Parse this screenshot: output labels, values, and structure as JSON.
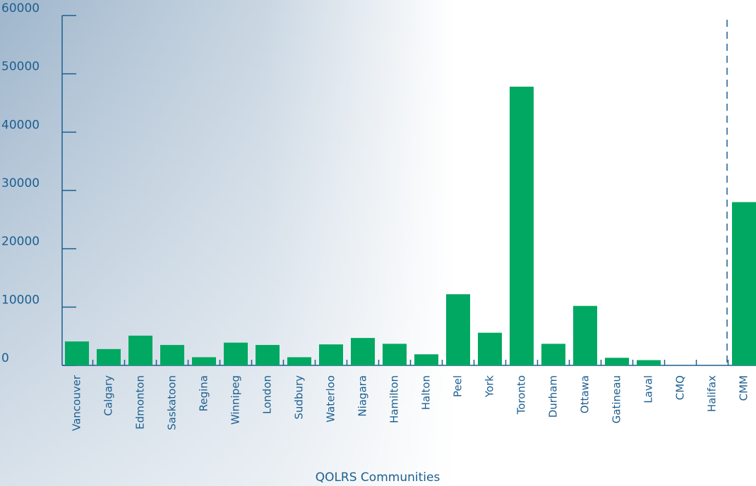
{
  "chart_data": {
    "type": "bar",
    "x_label": "QOLRS Communities",
    "categories": [
      "Vancouver",
      "Calgary",
      "Edmonton",
      "Saskatoon",
      "Regina",
      "Winnipeg",
      "London",
      "Sudbury",
      "Waterloo",
      "Niagara",
      "Hamilton",
      "Halton",
      "Peel",
      "York",
      "Toronto",
      "Durham",
      "Ottawa",
      "Gatineau",
      "Laval",
      "CMQ",
      "Halifax",
      "CMM"
    ],
    "values": [
      4100,
      2800,
      5100,
      3500,
      1400,
      3900,
      3500,
      1400,
      3600,
      4700,
      3700,
      1900,
      12200,
      5600,
      47800,
      3700,
      10200,
      1300,
      900,
      null,
      null,
      28000
    ],
    "color": "#00a862",
    "ylim": [
      0,
      60000
    ],
    "yticks": [
      0,
      10000,
      20000,
      30000,
      40000,
      50000,
      60000
    ]
  }
}
